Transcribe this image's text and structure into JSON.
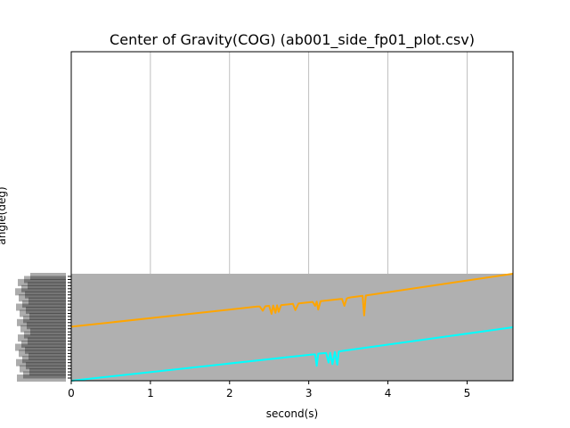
{
  "chart_data": {
    "type": "line",
    "title": "Center of Gravity(COG) (ab001_side_fp01_plot.csv)",
    "xlabel": "second(s)",
    "ylabel": "angle(deg)",
    "xlim": [
      0,
      5.58
    ],
    "xticks": [
      0,
      1,
      2,
      3,
      4,
      5
    ],
    "grid": "x",
    "band_color": "#b0b0b0",
    "series": [
      {
        "color": "#ffa500",
        "x": [
          0,
          2.35,
          2.38,
          2.42,
          2.45,
          2.5,
          2.53,
          2.55,
          2.58,
          2.6,
          2.62,
          2.65,
          2.8,
          2.83,
          2.87,
          2.9,
          3.05,
          3.08,
          3.1,
          3.12,
          3.15,
          3.42,
          3.45,
          3.48,
          3.5,
          3.55,
          3.68,
          3.7,
          3.72,
          3.75,
          5.58
        ],
        "y": [
          0.505,
          0.693,
          0.694,
          0.654,
          0.696,
          0.7,
          0.625,
          0.703,
          0.635,
          0.705,
          0.645,
          0.707,
          0.719,
          0.66,
          0.722,
          0.725,
          0.737,
          0.7,
          0.739,
          0.665,
          0.744,
          0.765,
          0.7,
          0.768,
          0.775,
          0.782,
          0.793,
          0.61,
          0.796,
          0.8,
          1.0
        ]
      },
      {
        "color": "#00ffff",
        "x": [
          0,
          3.05,
          3.08,
          3.1,
          3.12,
          3.22,
          3.25,
          3.27,
          3.3,
          3.33,
          3.36,
          3.38,
          3.4,
          5.58
        ],
        "y": [
          0.0,
          0.246,
          0.246,
          0.14,
          0.253,
          0.259,
          0.17,
          0.262,
          0.155,
          0.268,
          0.15,
          0.272,
          0.276,
          0.5
        ]
      }
    ]
  }
}
